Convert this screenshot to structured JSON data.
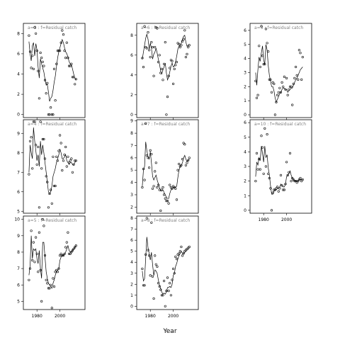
{
  "chart_data": {
    "type": "scatter",
    "xlabel": "Year",
    "ylabel": "",
    "xtick_values": [
      1980,
      2000
    ],
    "panels": [
      {
        "age_label": "a=3",
        "strip": "a=3  :  f=Residual catch",
        "xlim": [
          1970,
          2020
        ],
        "ylim": [
          -0.3,
          9
        ],
        "yticks": [
          0,
          2,
          4,
          6,
          8
        ],
        "points_x": [
          1973,
          1974,
          1975,
          1976,
          1977,
          1978,
          1979,
          1980,
          1981,
          1982,
          1983,
          1984,
          1985,
          1986,
          1987,
          1988,
          1989,
          1990,
          1991,
          1992,
          1993,
          1994,
          1995,
          1996,
          1997,
          1998,
          1999,
          2000,
          2001,
          2002,
          2003,
          2004,
          2005,
          2006,
          2007,
          2008,
          2009,
          2010,
          2011,
          2012,
          2013,
          2014
        ],
        "points_y": [
          7.8,
          6.2,
          4.6,
          5.8,
          4.5,
          8.6,
          8.0,
          6.3,
          4.3,
          1.6,
          6.1,
          5.6,
          5.2,
          4.8,
          3.4,
          2.1,
          3.1,
          0.0,
          0.0,
          0.7,
          0.0,
          0.0,
          4.5,
          1.4,
          5.0,
          6.3,
          6.3,
          6.3,
          7.1,
          8.3,
          7.9,
          6.3,
          5.6,
          7.1,
          5.6,
          4.8,
          4.8,
          5.0,
          3.7,
          3.7,
          3.0,
          3.5
        ],
        "line_y": [
          7.2,
          6.0,
          5.3,
          6.8,
          7.1,
          5.8,
          7.0,
          6.4,
          4.7,
          3.6,
          5.5,
          5.0,
          4.6,
          4.2,
          3.5,
          2.9,
          3.0,
          2.2,
          1.3,
          1.6,
          1.8,
          2.4,
          3.2,
          3.8,
          4.7,
          5.6,
          6.2,
          6.6,
          7.0,
          7.4,
          7.1,
          6.6,
          6.2,
          6.0,
          5.7,
          5.2,
          5.0,
          4.9,
          4.5,
          4.0,
          3.6,
          3.4
        ]
      },
      {
        "age_label": "a=6",
        "strip": "a=6  :  f=Residual catch",
        "xlim": [
          1970,
          2020
        ],
        "ylim": [
          -0.3,
          9.2
        ],
        "yticks": [
          0,
          2,
          4,
          6,
          8
        ],
        "points_x": [
          1973,
          1974,
          1975,
          1976,
          1977,
          1978,
          1979,
          1980,
          1981,
          1982,
          1983,
          1984,
          1985,
          1986,
          1987,
          1988,
          1989,
          1990,
          1991,
          1992,
          1993,
          1994,
          1995,
          1996,
          1997,
          1998,
          1999,
          2000,
          2001,
          2002,
          2003,
          2004,
          2005,
          2006,
          2007,
          2008,
          2009,
          2010,
          2011,
          2012,
          2013,
          2014
        ],
        "points_y": [
          5.7,
          4.8,
          8.9,
          6.8,
          6.7,
          8.3,
          6.5,
          5.8,
          7.3,
          6.8,
          3.9,
          6.8,
          8.8,
          8.7,
          5.3,
          6.0,
          4.2,
          4.6,
          3.5,
          5.1,
          7.3,
          0.0,
          1.8,
          3.9,
          4.7,
          5.5,
          5.4,
          3.1,
          4.6,
          5.0,
          5.3,
          7.2,
          7.1,
          6.8,
          7.0,
          7.4,
          7.6,
          8.5,
          5.8,
          6.1,
          6.8,
          7.0
        ],
        "line_y": [
          5.6,
          6.3,
          7.0,
          7.7,
          8.1,
          7.6,
          6.6,
          7.2,
          6.7,
          5.6,
          6.1,
          6.3,
          6.7,
          6.2,
          5.6,
          5.1,
          4.4,
          4.1,
          4.5,
          4.8,
          5.2,
          4.2,
          3.5,
          3.8,
          4.3,
          4.9,
          5.2,
          4.8,
          4.9,
          5.3,
          5.9,
          6.6,
          6.9,
          7.0,
          7.2,
          7.6,
          7.9,
          8.0,
          7.3,
          6.9,
          7.0,
          7.1
        ]
      },
      {
        "age_label": "a=9",
        "strip": "a=9  :  f=Residual catch",
        "xlim": [
          1970,
          2020
        ],
        "ylim": [
          -0.2,
          6.5
        ],
        "yticks": [
          0,
          1,
          2,
          3,
          4,
          5,
          6
        ],
        "points_x": [
          1973,
          1974,
          1975,
          1976,
          1977,
          1978,
          1979,
          1980,
          1981,
          1982,
          1983,
          1984,
          1985,
          1986,
          1987,
          1988,
          1989,
          1990,
          1991,
          1992,
          1993,
          1994,
          1995,
          1996,
          1997,
          1998,
          1999,
          2000,
          2001,
          2002,
          2003,
          2004,
          2005,
          2006,
          2007,
          2008,
          2009,
          2010,
          2011,
          2012,
          2013,
          2014
        ],
        "points_y": [
          2.4,
          1.2,
          1.4,
          4.9,
          3.4,
          6.3,
          4.2,
          3.6,
          3.6,
          6.1,
          5.1,
          4.5,
          2.5,
          2.5,
          1.6,
          2.3,
          2.2,
          0.0,
          0.9,
          1.4,
          1.6,
          1.9,
          1.6,
          2.3,
          2.0,
          2.7,
          1.8,
          2.6,
          1.4,
          1.8,
          2.0,
          2.0,
          0.7,
          2.2,
          2.6,
          3.4,
          2.8,
          2.5,
          4.6,
          4.4,
          2.5,
          4.1
        ],
        "line_y": [
          3.0,
          2.1,
          3.2,
          4.1,
          3.8,
          4.4,
          4.9,
          3.9,
          3.6,
          5.0,
          4.6,
          3.5,
          2.8,
          2.4,
          2.0,
          2.0,
          1.7,
          1.2,
          0.9,
          1.1,
          1.3,
          1.5,
          1.6,
          1.8,
          1.9,
          1.9,
          1.8,
          1.8,
          1.6,
          1.7,
          1.8,
          1.9,
          1.9,
          2.1,
          2.3,
          2.5,
          2.6,
          2.8,
          3.0,
          3.2,
          3.3,
          3.4
        ]
      },
      {
        "age_label": "a=4",
        "strip": "a=4  :  f=Residual catch",
        "xlim": [
          1970,
          2020
        ],
        "ylim": [
          4.9,
          9.7
        ],
        "yticks": [
          5,
          6,
          7,
          8,
          9
        ],
        "points_x": [
          1973,
          1974,
          1975,
          1976,
          1977,
          1978,
          1979,
          1980,
          1981,
          1982,
          1983,
          1984,
          1985,
          1986,
          1987,
          1988,
          1989,
          1990,
          1991,
          1992,
          1993,
          1994,
          1995,
          1996,
          1997,
          1998,
          1999,
          2000,
          2001,
          2002,
          2003,
          2004,
          2005,
          2006,
          2007,
          2008,
          2009,
          2010,
          2011,
          2012,
          2013,
          2014
        ],
        "points_y": [
          6.9,
          8.6,
          8.8,
          7.2,
          9.6,
          9.6,
          8.4,
          7.4,
          8.3,
          5.2,
          9.6,
          7.2,
          8.7,
          8.7,
          7.7,
          6.8,
          6.5,
          5.2,
          5.9,
          6.1,
          5.4,
          7.8,
          6.3,
          6.3,
          7.8,
          7.6,
          8.1,
          8.9,
          8.5,
          7.1,
          7.6,
          7.9,
          8.3,
          7.3,
          7.8,
          7.5,
          7.6,
          7.7,
          7.0,
          7.4,
          7.6,
          7.6
        ],
        "line_y": [
          7.0,
          8.4,
          8.0,
          7.7,
          9.3,
          8.6,
          8.1,
          7.6,
          7.9,
          7.3,
          8.6,
          7.9,
          8.4,
          8.0,
          7.5,
          7.0,
          6.5,
          6.0,
          5.9,
          6.0,
          6.3,
          6.8,
          7.0,
          7.2,
          7.5,
          7.7,
          7.9,
          8.2,
          8.0,
          7.7,
          7.7,
          7.8,
          7.9,
          7.6,
          7.5,
          7.4,
          7.5,
          7.5,
          7.4,
          7.4,
          7.5,
          7.6
        ]
      },
      {
        "age_label": "a=7",
        "strip": "a=7  :  f=Residual catch",
        "xlim": [
          1970,
          2020
        ],
        "ylim": [
          1.5,
          9.1
        ],
        "yticks": [
          2,
          3,
          4,
          5,
          6,
          7,
          8,
          9
        ],
        "points_x": [
          1973,
          1974,
          1975,
          1976,
          1977,
          1978,
          1979,
          1980,
          1981,
          1982,
          1983,
          1984,
          1985,
          1986,
          1987,
          1988,
          1989,
          1990,
          1991,
          1992,
          1993,
          1994,
          1995,
          1996,
          1997,
          1998,
          1999,
          2000,
          2001,
          2002,
          2003,
          2004,
          2005,
          2006,
          2007,
          2008,
          2009,
          2010,
          2011,
          2012,
          2013,
          2014
        ],
        "points_y": [
          3.6,
          5.1,
          4.2,
          8.8,
          6.2,
          6.0,
          5.2,
          6.6,
          6.3,
          3.5,
          3.7,
          4.9,
          5.6,
          3.6,
          3.8,
          3.4,
          1.7,
          3.4,
          3.6,
          3.0,
          2.7,
          2.5,
          2.5,
          2.3,
          3.8,
          3.6,
          3.5,
          3.7,
          3.6,
          3.5,
          2.6,
          5.0,
          5.5,
          5.3,
          5.4,
          5.9,
          7.2,
          7.1,
          5.4,
          5.6,
          5.8,
          6.0
        ],
        "line_y": [
          3.7,
          5.0,
          5.3,
          7.3,
          6.6,
          6.1,
          5.9,
          6.5,
          5.6,
          4.5,
          4.2,
          4.4,
          4.6,
          4.2,
          3.9,
          3.6,
          3.3,
          3.3,
          3.4,
          3.2,
          3.0,
          2.8,
          2.7,
          2.7,
          3.1,
          3.4,
          3.5,
          3.6,
          3.6,
          3.6,
          3.7,
          4.4,
          5.0,
          5.3,
          5.4,
          5.6,
          6.0,
          6.2,
          5.9,
          5.7,
          5.8,
          5.9
        ]
      },
      {
        "age_label": "a=10",
        "strip": "a=10  :  f=Residual catch",
        "xlim": [
          1970,
          2020
        ],
        "ylim": [
          -0.2,
          6.2
        ],
        "yticks": [
          0,
          1,
          2,
          3,
          4,
          5,
          6
        ],
        "points_x": [
          1973,
          1974,
          1975,
          1976,
          1977,
          1978,
          1979,
          1980,
          1981,
          1982,
          1983,
          1984,
          1985,
          1986,
          1987,
          1988,
          1989,
          1990,
          1991,
          1992,
          1993,
          1994,
          1995,
          1996,
          1997,
          1998,
          1999,
          2000,
          2001,
          2002,
          2003,
          2004,
          2005,
          2006,
          2007,
          2008,
          2009,
          2010,
          2011,
          2012,
          2013,
          2014
        ],
        "points_y": [
          2.0,
          3.9,
          2.8,
          3.5,
          2.8,
          5.1,
          4.3,
          2.5,
          5.6,
          3.0,
          5.2,
          2.5,
          2.2,
          1.5,
          0.0,
          1.2,
          1.4,
          1.4,
          1.5,
          1.6,
          1.3,
          1.5,
          2.4,
          1.7,
          1.4,
          1.4,
          1.8,
          3.3,
          2.4,
          2.6,
          3.9,
          2.0,
          2.2,
          2.1,
          2.0,
          2.0,
          1.9,
          2.0,
          2.1,
          2.2,
          2.0,
          2.1
        ],
        "line_y": [
          2.3,
          3.3,
          3.1,
          3.6,
          3.4,
          4.4,
          3.9,
          3.3,
          4.4,
          3.6,
          3.8,
          2.9,
          2.4,
          1.7,
          1.1,
          1.1,
          1.3,
          1.4,
          1.4,
          1.5,
          1.5,
          1.6,
          1.8,
          1.7,
          1.6,
          1.6,
          1.8,
          2.3,
          2.4,
          2.5,
          2.7,
          2.4,
          2.2,
          2.1,
          2.0,
          2.0,
          2.0,
          2.0,
          2.1,
          2.1,
          2.1,
          2.1
        ]
      },
      {
        "age_label": "a=5",
        "strip": "a=5  :  f=Residual catch",
        "xlim": [
          1970,
          2020
        ],
        "ylim": [
          4.5,
          10.2
        ],
        "yticks": [
          5,
          6,
          7,
          8,
          9,
          10
        ],
        "points_x": [
          1973,
          1974,
          1975,
          1976,
          1977,
          1978,
          1979,
          1980,
          1981,
          1982,
          1983,
          1984,
          1985,
          1986,
          1987,
          1988,
          1989,
          1990,
          1991,
          1992,
          1993,
          1994,
          1995,
          1996,
          1997,
          1998,
          1999,
          2000,
          2001,
          2002,
          2003,
          2004,
          2005,
          2006,
          2007,
          2008,
          2009,
          2010,
          2011,
          2012,
          2013,
          2014
        ],
        "points_y": [
          6.3,
          7.0,
          9.3,
          7.5,
          8.6,
          7.4,
          8.9,
          7.9,
          6.8,
          9.2,
          6.9,
          5.0,
          10.0,
          9.6,
          7.8,
          6.3,
          6.1,
          5.8,
          5.8,
          6.0,
          4.6,
          6.4,
          5.9,
          6.8,
          6.9,
          6.8,
          7.0,
          7.8,
          7.9,
          7.8,
          7.8,
          7.9,
          8.3,
          8.6,
          9.2,
          7.9,
          7.9,
          8.0,
          8.1,
          8.2,
          8.3,
          8.4
        ],
        "line_y": [
          6.6,
          7.2,
          9.0,
          7.6,
          8.2,
          8.1,
          8.2,
          7.6,
          7.3,
          8.1,
          7.0,
          6.4,
          8.6,
          8.6,
          7.7,
          6.8,
          6.4,
          6.1,
          6.0,
          5.9,
          5.8,
          6.1,
          6.3,
          6.6,
          6.8,
          6.9,
          7.0,
          7.5,
          7.7,
          7.8,
          7.8,
          7.9,
          8.0,
          8.2,
          8.4,
          8.1,
          8.0,
          8.0,
          8.1,
          8.2,
          8.3,
          8.4
        ]
      },
      {
        "age_label": "a=8",
        "strip": "a=8  :  f=Residual catch",
        "xlim": [
          1970,
          2020
        ],
        "ylim": [
          -0.3,
          8.2
        ],
        "yticks": [
          0,
          1,
          2,
          3,
          4,
          5,
          6,
          7,
          8
        ],
        "points_x": [
          1973,
          1974,
          1975,
          1976,
          1977,
          1978,
          1979,
          1980,
          1981,
          1982,
          1983,
          1984,
          1985,
          1986,
          1987,
          1988,
          1989,
          1990,
          1991,
          1992,
          1993,
          1994,
          1995,
          1996,
          1997,
          1998,
          1999,
          2000,
          2001,
          2002,
          2003,
          2004,
          2005,
          2006,
          2007,
          2008,
          2009,
          2010,
          2011,
          2012,
          2013,
          2014
        ],
        "points_y": [
          3.4,
          1.9,
          1.9,
          4.7,
          8.0,
          5.1,
          4.6,
          2.8,
          7.6,
          2.7,
          0.7,
          4.6,
          3.8,
          3.6,
          2.1,
          1.8,
          1.5,
          1.0,
          1.0,
          2.3,
          0.0,
          1.4,
          2.6,
          1.4,
          2.1,
          1.0,
          2.4,
          3.4,
          3.0,
          4.5,
          4.3,
          4.7,
          4.8,
          5.0,
          5.4,
          4.6,
          4.8,
          5.0,
          5.1,
          5.2,
          5.3,
          5.4
        ],
        "line_y": [
          3.2,
          2.3,
          2.5,
          4.4,
          6.3,
          5.3,
          4.8,
          4.2,
          4.9,
          3.8,
          2.8,
          3.3,
          3.2,
          3.0,
          2.4,
          1.9,
          1.6,
          1.3,
          1.1,
          1.2,
          1.1,
          1.3,
          1.7,
          1.7,
          1.8,
          1.7,
          2.0,
          2.8,
          3.0,
          3.6,
          3.9,
          4.3,
          4.6,
          4.8,
          5.0,
          4.8,
          4.8,
          4.9,
          5.0,
          5.1,
          5.2,
          5.3
        ]
      }
    ]
  }
}
